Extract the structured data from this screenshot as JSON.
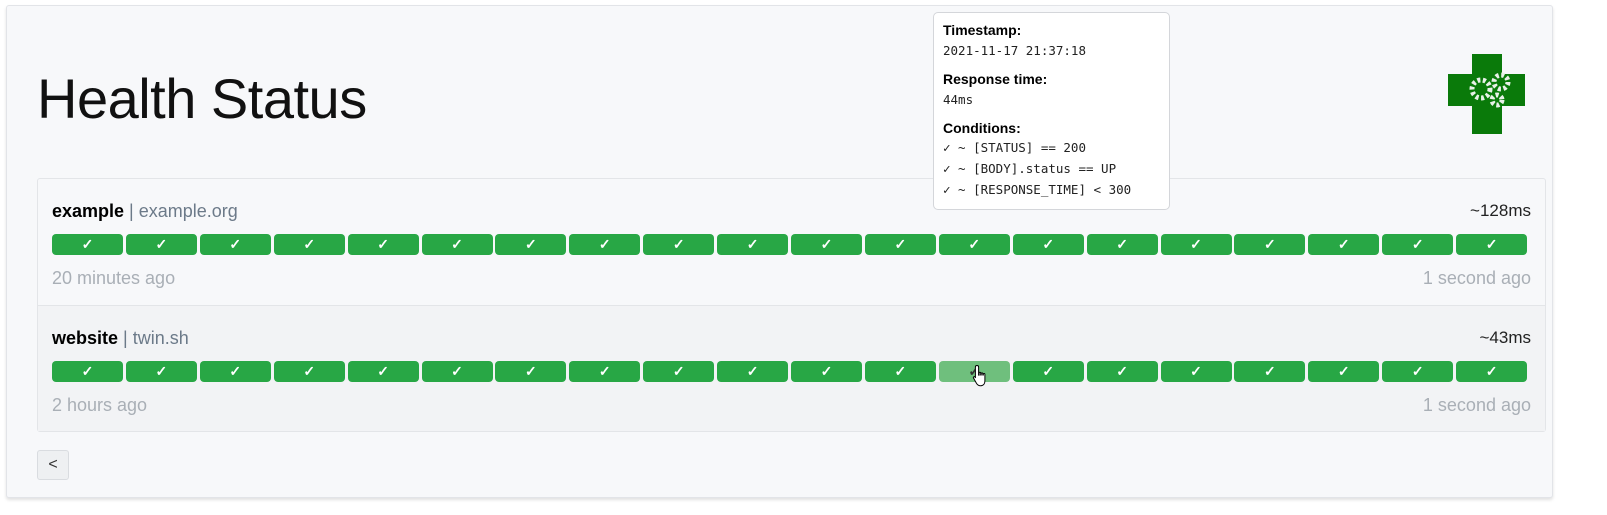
{
  "page": {
    "title": "Health Status"
  },
  "colors": {
    "success": "#28a745",
    "hovered": "#6fbf7d"
  },
  "services": [
    {
      "name": "example",
      "hostname": "example.org",
      "avg_response": "~128ms",
      "oldest": "20 minutes ago",
      "newest": "1 second ago",
      "results": [
        "✓",
        "✓",
        "✓",
        "✓",
        "✓",
        "✓",
        "✓",
        "✓",
        "✓",
        "✓",
        "✓",
        "✓",
        "✓",
        "✓",
        "✓",
        "✓",
        "✓",
        "✓",
        "✓",
        "✓"
      ]
    },
    {
      "name": "website",
      "hostname": "twin.sh",
      "avg_response": "~43ms",
      "oldest": "2 hours ago",
      "newest": "1 second ago",
      "results": [
        "✓",
        "✓",
        "✓",
        "✓",
        "✓",
        "✓",
        "✓",
        "✓",
        "✓",
        "✓",
        "✓",
        "✓",
        "✓",
        "✓",
        "✓",
        "✓",
        "✓",
        "✓",
        "✓",
        "✓"
      ],
      "hovered_index": 12
    }
  ],
  "tooltip": {
    "timestamp_label": "Timestamp:",
    "timestamp": "2021-11-17 21:37:18",
    "response_label": "Response time:",
    "response": "44ms",
    "conditions_label": "Conditions:",
    "conditions": [
      "✓ ~ [STATUS] == 200",
      "✓ ~ [BODY].status == UP",
      "✓ ~ [RESPONSE_TIME] < 300"
    ]
  },
  "pagination": {
    "prev": "<"
  }
}
